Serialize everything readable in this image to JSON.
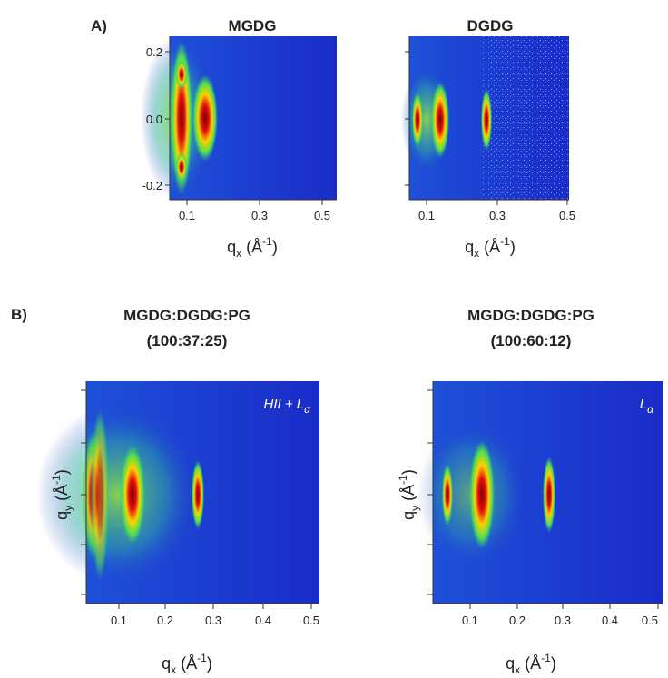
{
  "panel_a": {
    "label": "A)",
    "plots": [
      {
        "title": "MGDG",
        "yticks": [
          "0.2",
          "0.0",
          "-0.2"
        ],
        "xticks": [
          "0.1",
          "0.3",
          "0.5"
        ]
      },
      {
        "title": "DGDG",
        "xticks": [
          "0.1",
          "0.3",
          "0.5"
        ]
      }
    ]
  },
  "panel_b": {
    "label": "B)",
    "plots": [
      {
        "title": "MGDG:DGDG:PG",
        "ratio": "(100:37:25)",
        "annotation": {
          "text": "HII + L",
          "sub": "α"
        },
        "xticks": [
          "0.1",
          "0.2",
          "0.3",
          "0.4",
          "0.5"
        ]
      },
      {
        "title": "MGDG:DGDG:PG",
        "ratio": "(100:60:12)",
        "annotation": {
          "text": "L",
          "sub": "α"
        },
        "xticks": [
          "0.1",
          "0.2",
          "0.3",
          "0.4",
          "0.5"
        ]
      }
    ]
  },
  "axis_labels": {
    "x": {
      "base": "q",
      "sub": "x",
      "unit": " (Å",
      "exp": "-1",
      "close": ")"
    },
    "y": {
      "base": "q",
      "sub": "y",
      "unit": " (Å",
      "exp": "-1",
      "close": ")"
    }
  }
}
